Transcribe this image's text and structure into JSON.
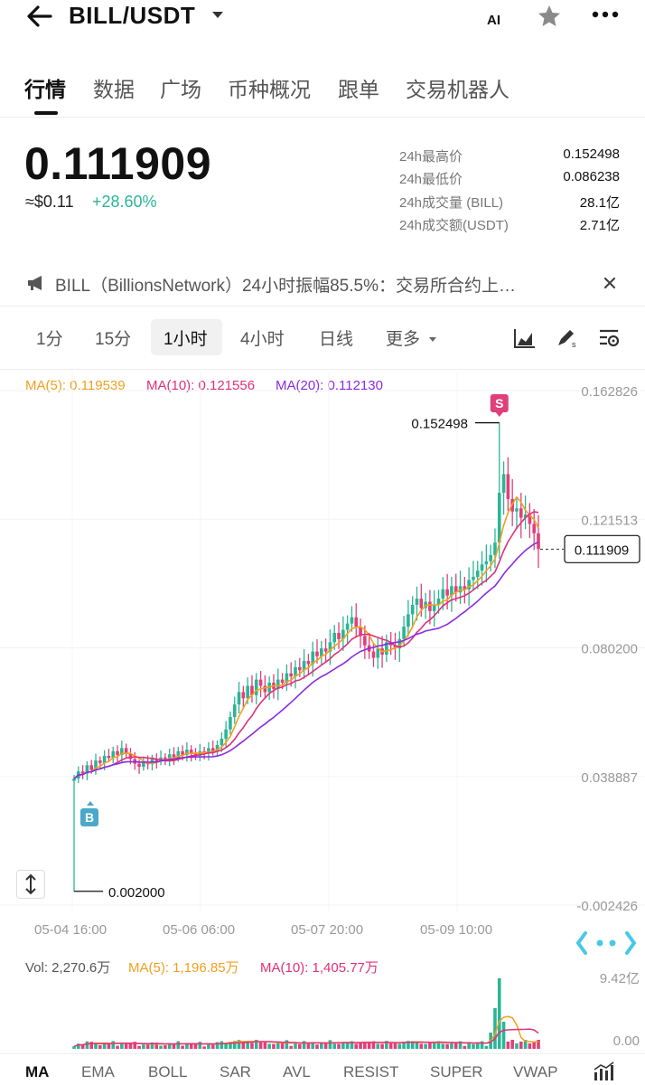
{
  "header": {
    "title": "BILL/USDT",
    "ai_label": "AI",
    "icons": [
      "arrow-left-icon",
      "caret-down-icon",
      "star-icon",
      "more-icon"
    ]
  },
  "main_tabs": [
    "行情",
    "数据",
    "广场",
    "币种概况",
    "跟单",
    "交易机器人"
  ],
  "price": {
    "last": "0.111909",
    "usd": "≈$0.11",
    "change": "+28.60%",
    "change_color": "#2bb596"
  },
  "stats": [
    {
      "label": "24h最高价",
      "value": "0.152498"
    },
    {
      "label": "24h最低价",
      "value": "0.086238"
    },
    {
      "label": "24h成交量 (BILL)",
      "value": "28.1亿"
    },
    {
      "label": "24h成交额(USDT)",
      "value": "2.71亿"
    }
  ],
  "announcement": {
    "text": "BILL（BillionsNetwork）24小时振幅85.5%：交易所合约上…",
    "icon": "megaphone-icon"
  },
  "intervals": {
    "items": [
      "1分",
      "15分",
      "1小时",
      "4小时",
      "日线",
      "更多"
    ],
    "active": "1小时",
    "tool_icons": [
      "area-chart-icon",
      "draw-tool-icon",
      "settings-icon"
    ]
  },
  "ma_legend": {
    "ma5": "MA(5): 0.119539",
    "ma10": "MA(10): 0.121556",
    "ma20": "MA(20): 0.112130",
    "colors": {
      "ma5": "#f0a020",
      "ma10": "#e0307a",
      "ma20": "#8a2be2"
    }
  },
  "chart_data": {
    "type": "candlestick",
    "y_axis_labels": [
      "0.162826",
      "0.121513",
      "0.080200",
      "0.038887",
      "-0.002426"
    ],
    "x_axis_labels": [
      "05-04 16:00",
      "05-06 06:00",
      "05-07 20:00",
      "05-09 10:00"
    ],
    "high_label": "0.152498",
    "low_label": "0.002000",
    "current_price_tag": "0.111909",
    "buy_marker": "B",
    "sell_marker": "S",
    "up_color": "#2bb596",
    "down_color": "#e0407a",
    "closes": [
      0.0382,
      0.0405,
      0.0398,
      0.0425,
      0.041,
      0.044,
      0.0432,
      0.0455,
      0.0448,
      0.047,
      0.0458,
      0.048,
      0.0462,
      0.0445,
      0.043,
      0.042,
      0.0435,
      0.0428,
      0.0445,
      0.0438,
      0.045,
      0.0442,
      0.046,
      0.045,
      0.047,
      0.0458,
      0.0475,
      0.0462,
      0.0455,
      0.047,
      0.0465,
      0.048,
      0.047,
      0.049,
      0.051,
      0.054,
      0.058,
      0.062,
      0.066,
      0.064,
      0.068,
      0.065,
      0.07,
      0.068,
      0.066,
      0.069,
      0.067,
      0.07,
      0.069,
      0.072,
      0.071,
      0.074,
      0.073,
      0.076,
      0.075,
      0.079,
      0.0775,
      0.08,
      0.079,
      0.082,
      0.085,
      0.083,
      0.086,
      0.088,
      0.09,
      0.087,
      0.084,
      0.081,
      0.079,
      0.077,
      0.08,
      0.078,
      0.082,
      0.081,
      0.08,
      0.083,
      0.087,
      0.091,
      0.094,
      0.096,
      0.093,
      0.095,
      0.092,
      0.094,
      0.096,
      0.099,
      0.097,
      0.1,
      0.098,
      0.1,
      0.099,
      0.102,
      0.103,
      0.105,
      0.107,
      0.108,
      0.11,
      0.114,
      0.13,
      0.136,
      0.128,
      0.124,
      0.125,
      0.122,
      0.123,
      0.12,
      0.117,
      0.1119
    ],
    "volume_axis_labels": [
      "9.42亿",
      "0.00"
    ]
  },
  "volume_legend": {
    "vol": "Vol: 2,270.6万",
    "ma5": "MA(5): 1,196.85万",
    "ma10": "MA(10): 1,405.77万"
  },
  "indicators": {
    "items": [
      "MA",
      "EMA",
      "BOLL",
      "SAR",
      "AVL",
      "RESIST",
      "SUPER",
      "VWAP"
    ],
    "active": "MA",
    "right_icon": "indicator-chart-icon"
  }
}
